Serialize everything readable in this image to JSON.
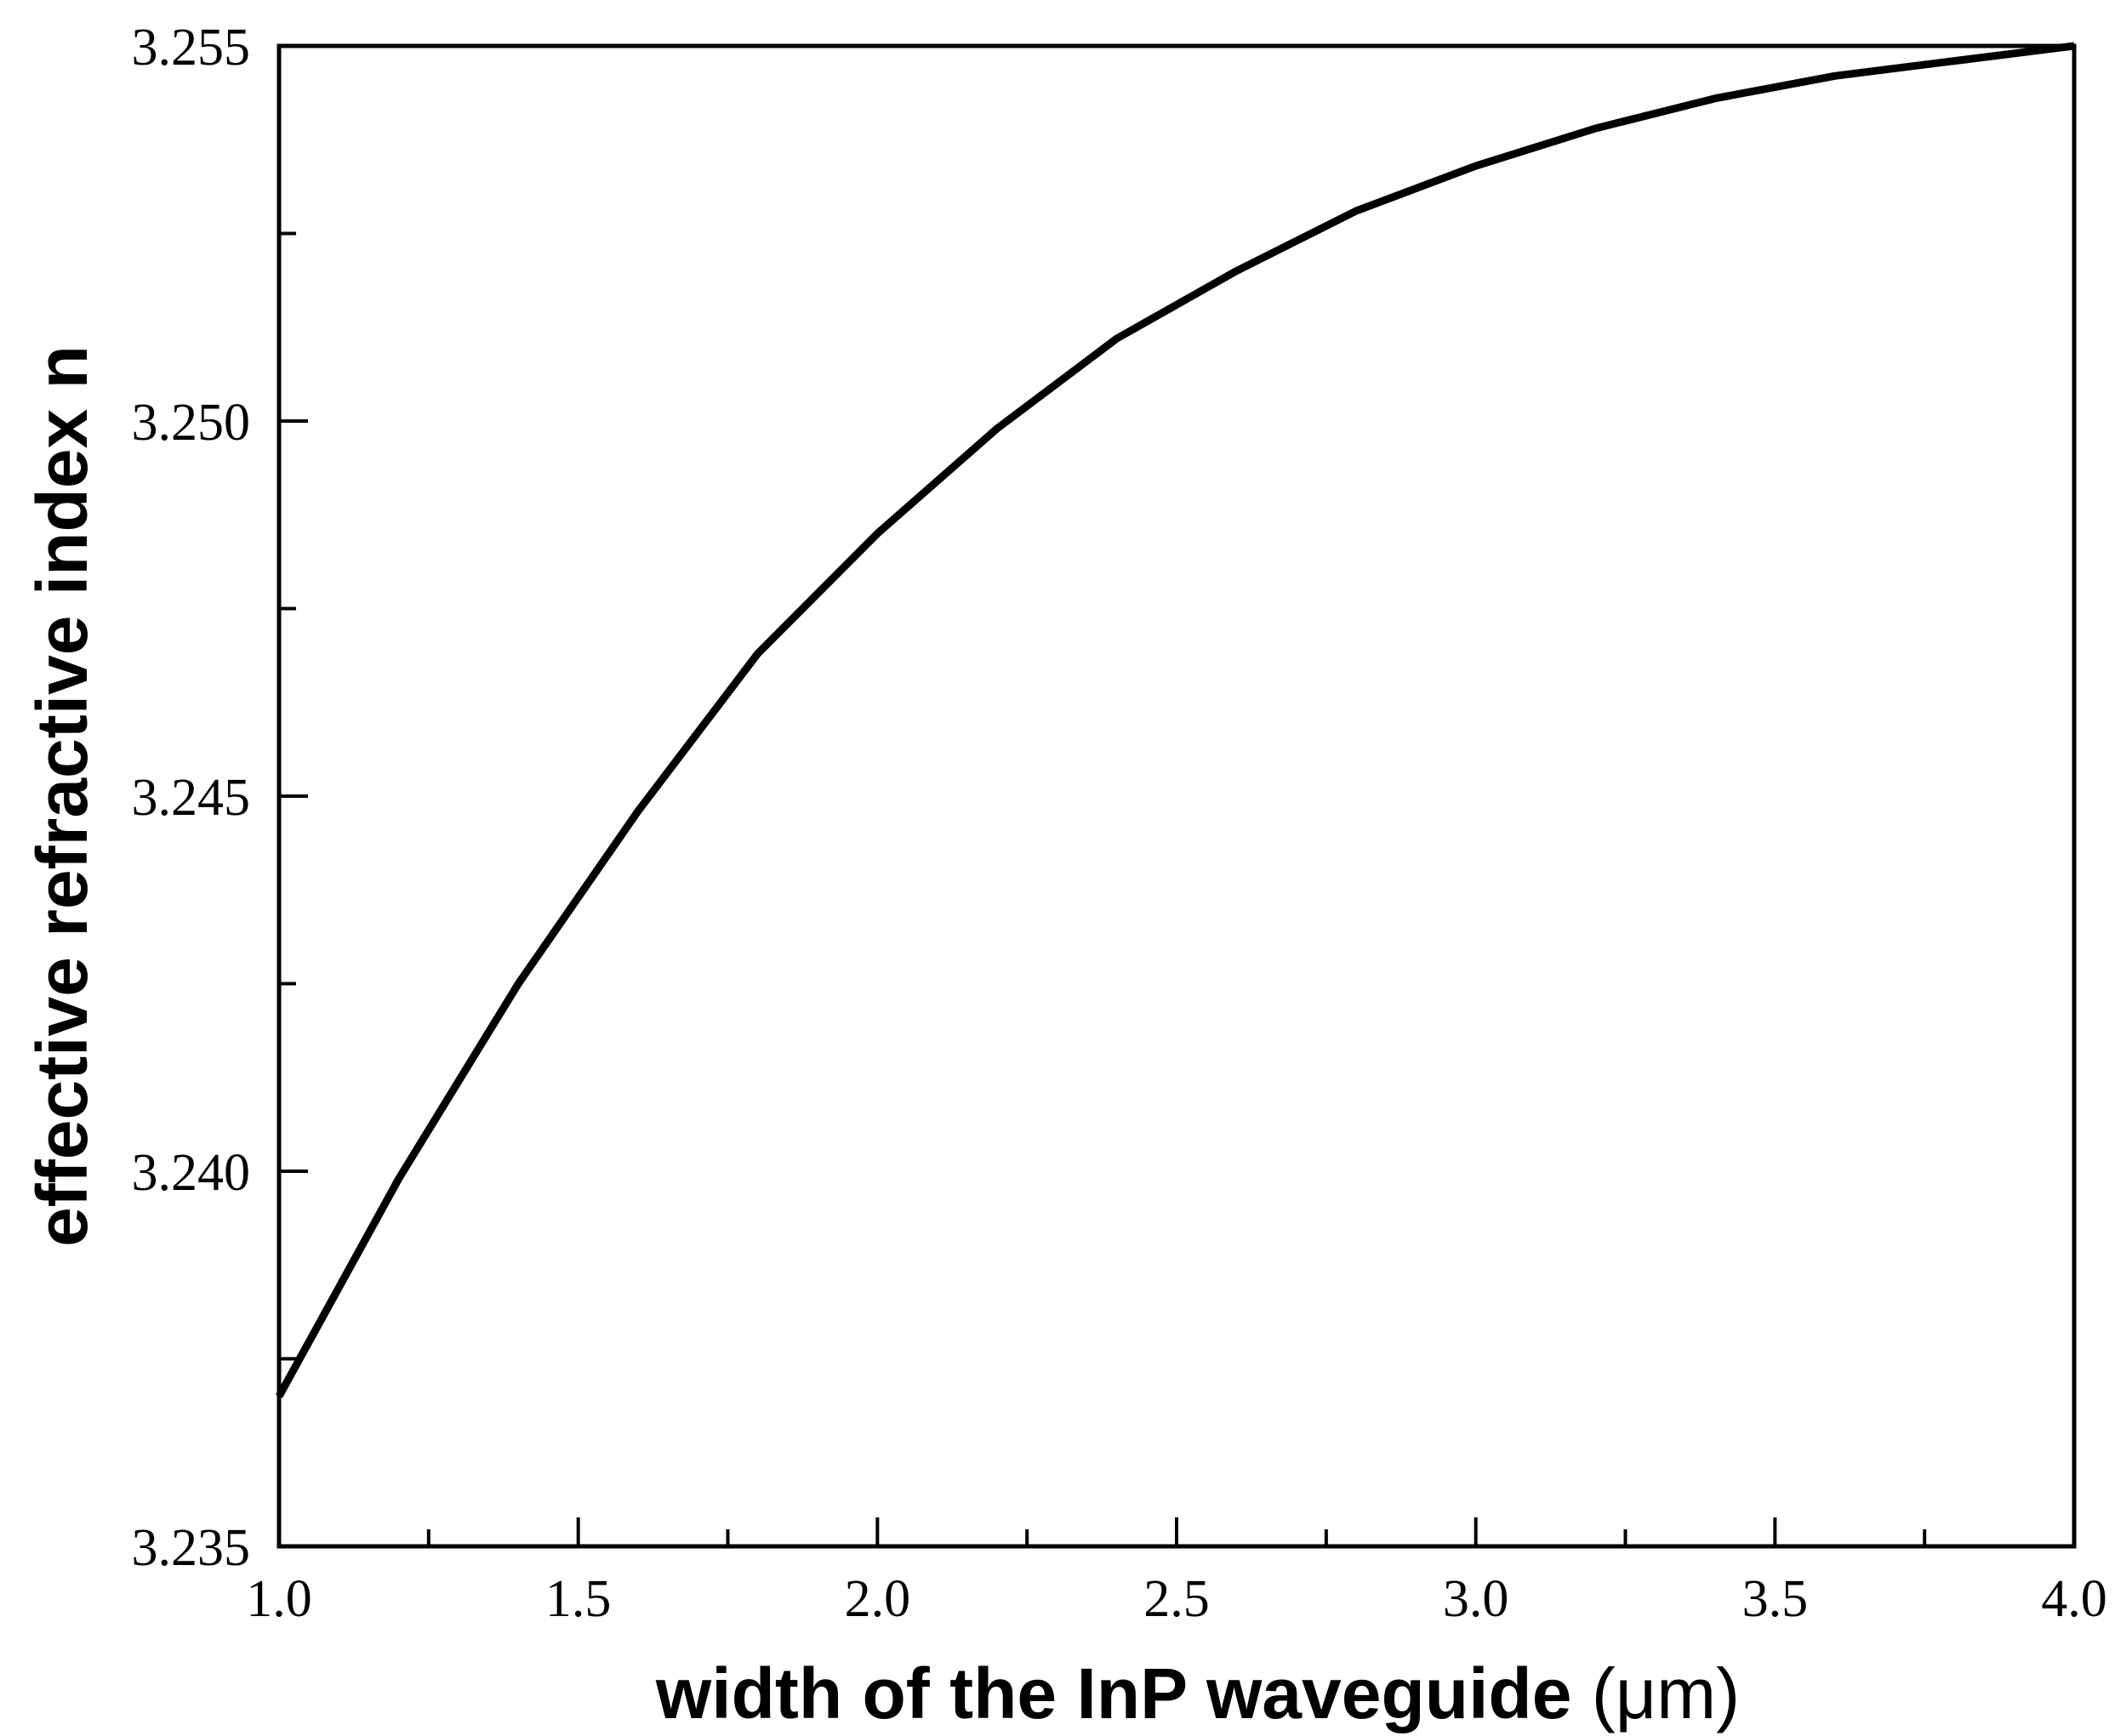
{
  "chart_data": {
    "type": "line",
    "title": "",
    "xlabel": "width of the InP waveguide",
    "xlabel_unit": "(μm)",
    "ylabel": "effective refractive index n",
    "xlim": [
      1.0,
      4.0
    ],
    "ylim": [
      3.235,
      3.255
    ],
    "x_ticks": [
      "1.0",
      "1.5",
      "2.0",
      "2.5",
      "3.0",
      "3.5",
      "4.0"
    ],
    "y_ticks": [
      "3.235",
      "3.240",
      "3.245",
      "3.250",
      "3.255"
    ],
    "grid": false,
    "legend": "none",
    "line_color": "#000000",
    "series": [
      {
        "x": [
          1.0,
          1.2,
          1.4,
          1.6,
          1.8,
          2.0,
          2.2,
          2.4,
          2.6,
          2.8,
          3.0,
          3.2,
          3.4,
          3.6,
          3.8,
          4.0
        ],
        "values": [
          3.237,
          3.2399,
          3.2425,
          3.2448,
          3.2469,
          3.2485,
          3.2499,
          3.2511,
          3.252,
          3.2528,
          3.2534,
          3.2539,
          3.2543,
          3.2546,
          3.2548,
          3.255
        ]
      }
    ]
  }
}
